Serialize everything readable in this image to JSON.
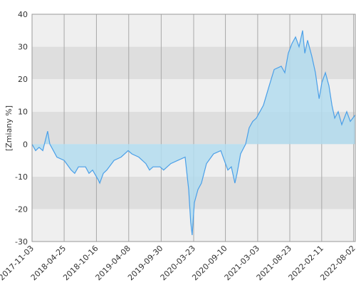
{
  "chart_data": {
    "type": "area",
    "y_label": "[Zmiany %]",
    "x": [
      "2017-11-03",
      "2017-11-22",
      "2017-12-11",
      "2017-12-31",
      "2018-01-26",
      "2018-02-07",
      "2018-02-26",
      "2018-03-17",
      "2018-04-25",
      "2018-06-02",
      "2018-06-21",
      "2018-07-11",
      "2018-08-18",
      "2018-09-06",
      "2018-09-25",
      "2018-10-26",
      "2018-11-03",
      "2018-11-22",
      "2018-12-11",
      "2019-01-19",
      "2019-02-26",
      "2019-04-05",
      "2019-04-25",
      "2019-06-01",
      "2019-07-09",
      "2019-07-29",
      "2019-08-17",
      "2019-09-24",
      "2019-10-13",
      "2019-11-21",
      "2019-12-29",
      "2020-02-06",
      "2020-02-25",
      "2020-03-07",
      "2020-03-15",
      "2020-03-27",
      "2020-04-15",
      "2020-05-04",
      "2020-05-31",
      "2020-07-08",
      "2020-08-16",
      "2020-09-04",
      "2020-09-23",
      "2020-10-12",
      "2020-10-31",
      "2020-11-12",
      "2020-12-01",
      "2020-12-28",
      "2021-01-16",
      "2021-02-04",
      "2021-02-24",
      "2021-04-03",
      "2021-05-04",
      "2021-05-31",
      "2021-07-08",
      "2021-07-27",
      "2021-08-15",
      "2021-09-04",
      "2021-09-23",
      "2021-10-12",
      "2021-10-31",
      "2021-11-12",
      "2021-11-27",
      "2021-12-20",
      "2022-01-08",
      "2022-01-28",
      "2022-02-12",
      "2022-03-03",
      "2022-03-22",
      "2022-04-07",
      "2022-04-22",
      "2022-05-11",
      "2022-05-30",
      "2022-06-26",
      "2022-07-15",
      "2022-08-11"
    ],
    "values": [
      0,
      -2,
      -1,
      -2,
      4,
      0,
      -2,
      -4,
      -5,
      -8,
      -9,
      -7,
      -7,
      -9,
      -8,
      -11,
      -12,
      -9,
      -8,
      -5,
      -4,
      -2,
      -3,
      -4,
      -6,
      -8,
      -7,
      -7,
      -8,
      -6,
      -5,
      -4,
      -14,
      -24,
      -28,
      -18,
      -14,
      -12,
      -6,
      -3,
      -2,
      -5,
      -8,
      -7,
      -12,
      -9,
      -3,
      0,
      5,
      7,
      8,
      12,
      18,
      23,
      24,
      22,
      28,
      31,
      33,
      30,
      35,
      28,
      32,
      27,
      22,
      14,
      19,
      22,
      18,
      12,
      8,
      10,
      6,
      10,
      7,
      9
    ],
    "line_color": "#4a9fe8",
    "fill_color": "#b3dcee",
    "xlim": [
      "2017-11-03",
      "2022-08-11"
    ],
    "xticks": [
      "2017-11-03",
      "2018-04-25",
      "2018-10-16",
      "2019-04-08",
      "2019-09-30",
      "2020-03-23",
      "2020-09-10",
      "2021-03-03",
      "2021-08-23",
      "2022-02-11",
      "2022-08-02"
    ],
    "ylim": [
      -30,
      40
    ],
    "yticks": [
      -30,
      -20,
      -10,
      0,
      10,
      20,
      30,
      40
    ],
    "grid": true
  }
}
